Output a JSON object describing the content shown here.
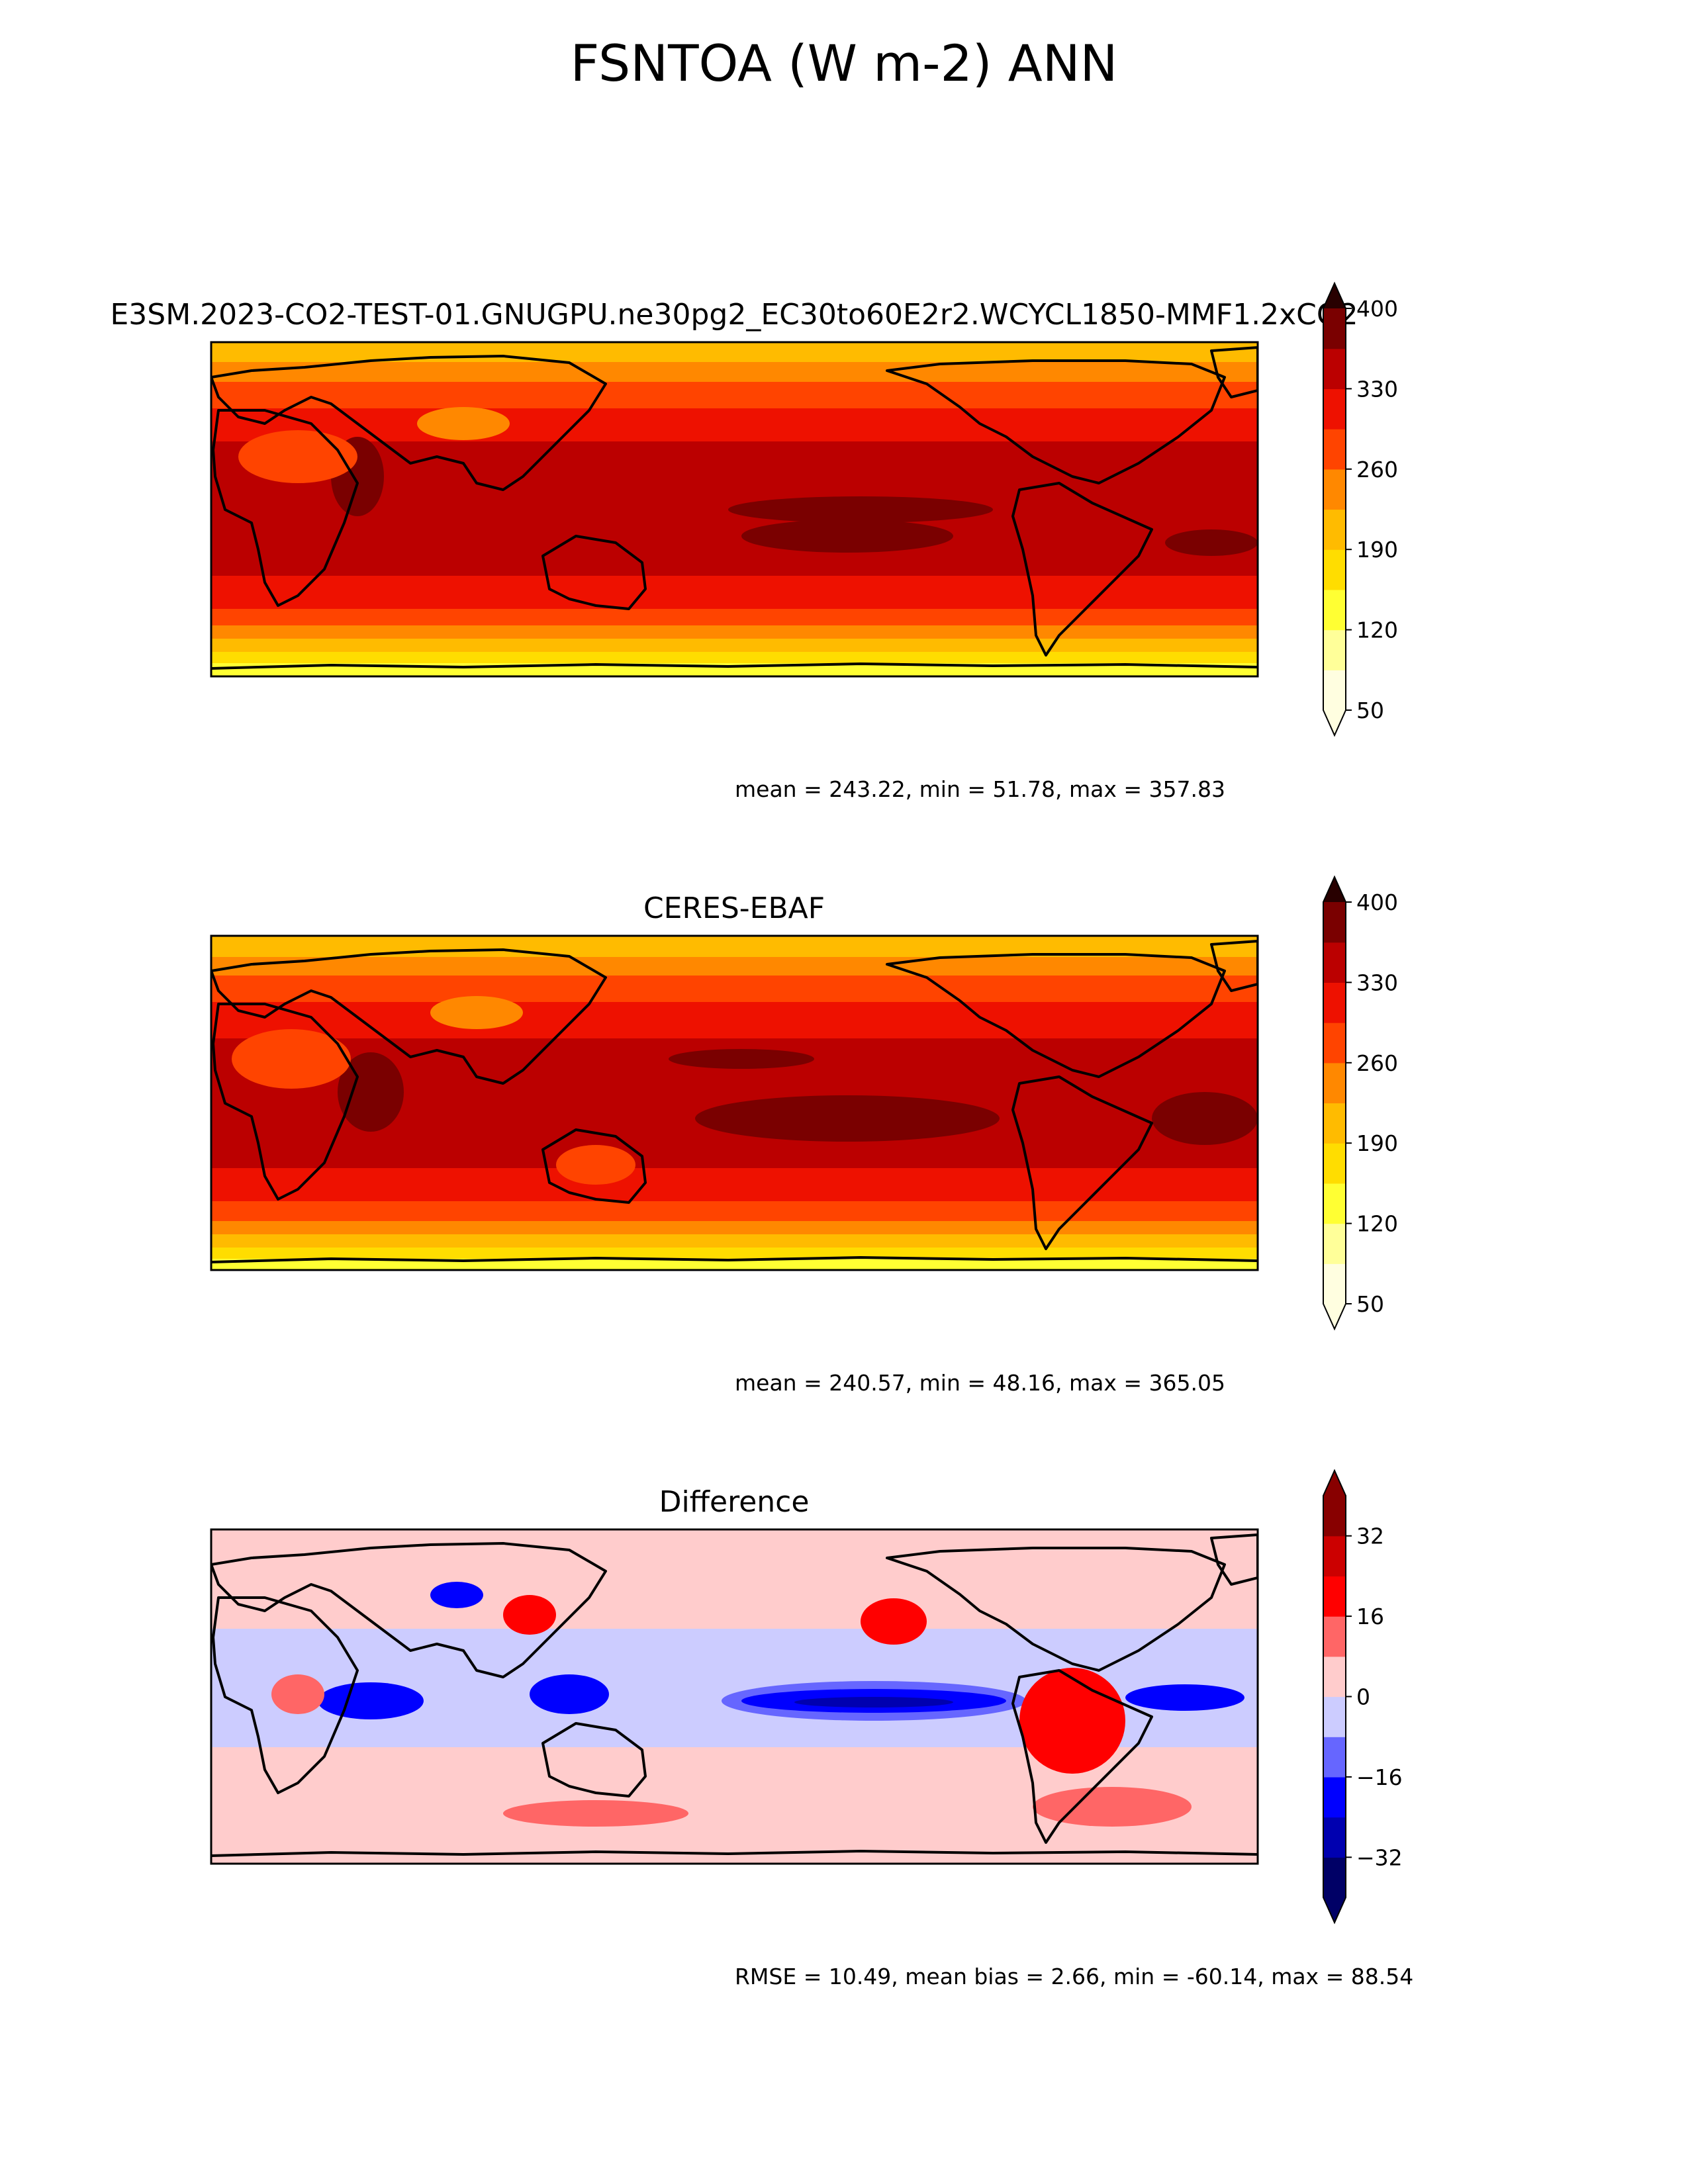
{
  "figure": {
    "title": "FSNTOA (W m-2) ANN"
  },
  "chart_data": [
    {
      "type": "heatmap",
      "projection": "plate-carree",
      "map": "global",
      "title": "E3SM.2023-CO2-TEST-01.GNUGPU.ne30pg2_EC30to60E2r2.WCYCL1850-MMF1.2xCO2",
      "colorbar": {
        "colormap": "hot_r",
        "levels": [
          50,
          85,
          120,
          155,
          190,
          225,
          260,
          295,
          330,
          365,
          400
        ],
        "ticks": [
          50,
          120,
          190,
          260,
          330,
          400
        ],
        "colors": [
          "#fffee0",
          "#ffff99",
          "#ffff33",
          "#ffdd00",
          "#ffbb00",
          "#ff8800",
          "#ff4400",
          "#ee1100",
          "#bb0000",
          "#7a0000",
          "#280000"
        ],
        "extend": "both"
      },
      "stats": "mean = 243.22, min = 51.78, max = 357.83",
      "grid": false
    },
    {
      "type": "heatmap",
      "projection": "plate-carree",
      "map": "global",
      "title": "CERES-EBAF",
      "colorbar": {
        "colormap": "hot_r",
        "levels": [
          50,
          85,
          120,
          155,
          190,
          225,
          260,
          295,
          330,
          365,
          400
        ],
        "ticks": [
          50,
          120,
          190,
          260,
          330,
          400
        ],
        "colors": [
          "#fffee0",
          "#ffff99",
          "#ffff33",
          "#ffdd00",
          "#ffbb00",
          "#ff8800",
          "#ff4400",
          "#ee1100",
          "#bb0000",
          "#7a0000",
          "#280000"
        ],
        "extend": "both"
      },
      "stats": "mean = 240.57, min = 48.16, max = 365.05",
      "grid": false
    },
    {
      "type": "heatmap",
      "projection": "plate-carree",
      "map": "global",
      "title": "Difference",
      "colorbar": {
        "colormap": "diverging blue-white-red",
        "levels": [
          -40,
          -32,
          -24,
          -16,
          -8,
          0,
          8,
          16,
          24,
          32,
          40
        ],
        "ticks": [
          -32,
          -16,
          0,
          16,
          32
        ],
        "tick_labels": [
          "−32",
          "−16",
          "0",
          "16",
          "32"
        ],
        "colors": [
          "#000066",
          "#0000b0",
          "#0000ff",
          "#6666ff",
          "#ccccff",
          "#ffcccc",
          "#ff6666",
          "#ff0000",
          "#cc0000",
          "#880000"
        ],
        "extend": "both"
      },
      "stats": "RMSE = 10.49, mean bias = 2.66, min = -60.14, max = 88.54",
      "grid": false
    }
  ]
}
